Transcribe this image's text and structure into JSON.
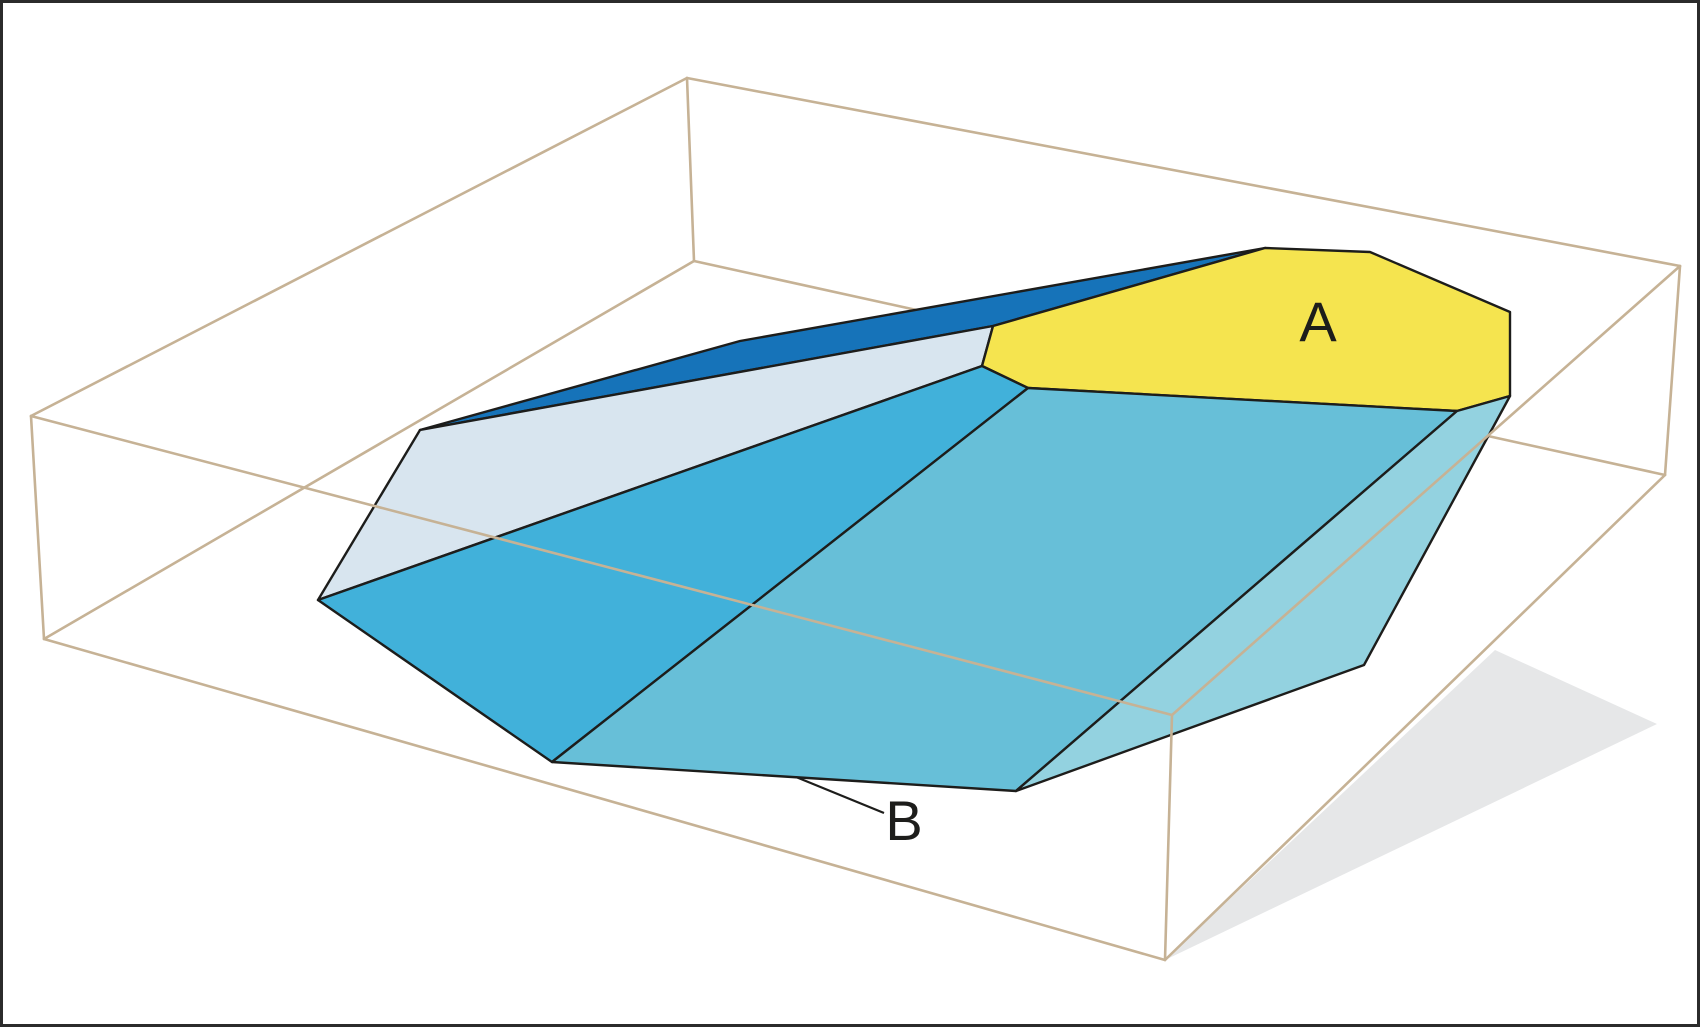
{
  "figure": {
    "labels": {
      "region_a": "A",
      "region_b": "B"
    },
    "colors": {
      "region_a_face": "#f5e44f",
      "front_left_face": "#41b1da",
      "front_center_face": "#67bfd8",
      "front_right_face": "#93d2e0",
      "top_left_face": "#d8e5ef",
      "top_edge_face": "#1673b9",
      "shadow": "#e6e7e8",
      "bounding_box_edges": "#c6b295",
      "outlines": "#1d1d1b",
      "frame": "#2b2b2b"
    }
  }
}
